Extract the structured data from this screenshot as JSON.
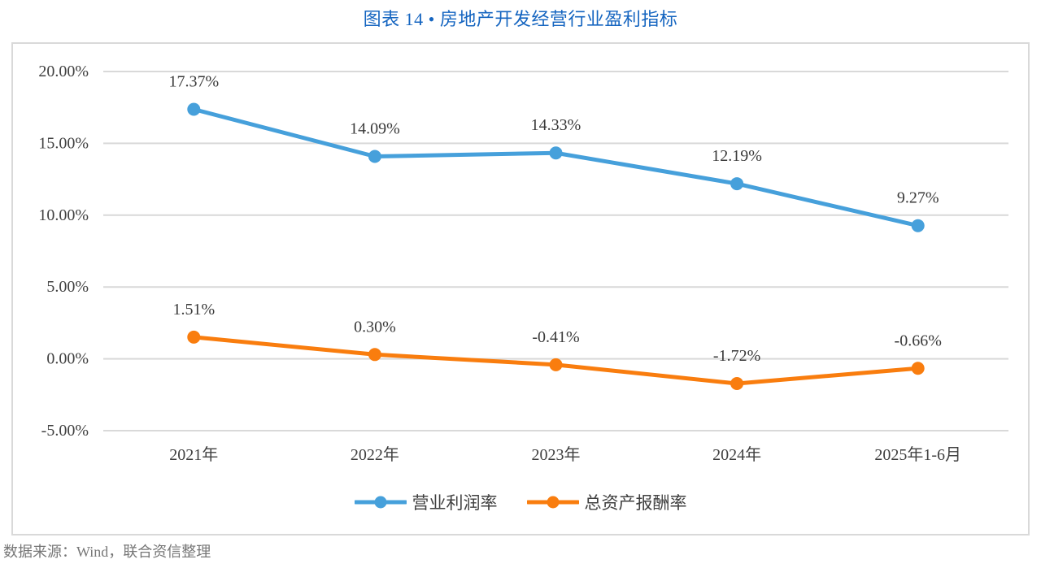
{
  "title": "图表 14 • 房地产开发经营行业盈利指标",
  "source_note": "数据来源：Wind，联合资信整理",
  "colors": {
    "title_blue": "#1565C0",
    "grid": "#D9D9D9",
    "axis_text": "#404040",
    "data_label_text": "#3a3a3a",
    "source_text": "#767676"
  },
  "chart_data": {
    "type": "line",
    "title": "图表 14 • 房地产开发经营行业盈利指标",
    "categories": [
      "2021年",
      "2022年",
      "2023年",
      "2024年",
      "2025年1-6月"
    ],
    "series": [
      {
        "name": "营业利润率",
        "color": "#46A0DB",
        "values": [
          17.37,
          14.09,
          14.33,
          12.19,
          9.27
        ],
        "labels": [
          "17.37%",
          "14.09%",
          "14.33%",
          "12.19%",
          "9.27%"
        ]
      },
      {
        "name": "总资产报酬率",
        "color": "#F97D0E",
        "values": [
          1.51,
          0.3,
          -0.41,
          -1.72,
          -0.66
        ],
        "labels": [
          "1.51%",
          "0.30%",
          "-0.41%",
          "-1.72%",
          "-0.66%"
        ]
      }
    ],
    "y_axis": {
      "min": -5,
      "max": 20,
      "step": 5,
      "tick_labels": [
        "20.00%",
        "15.00%",
        "10.00%",
        "5.00%",
        "0.00%",
        "-5.00%"
      ],
      "format": "percent"
    },
    "grid": true,
    "legend_position": "bottom"
  }
}
